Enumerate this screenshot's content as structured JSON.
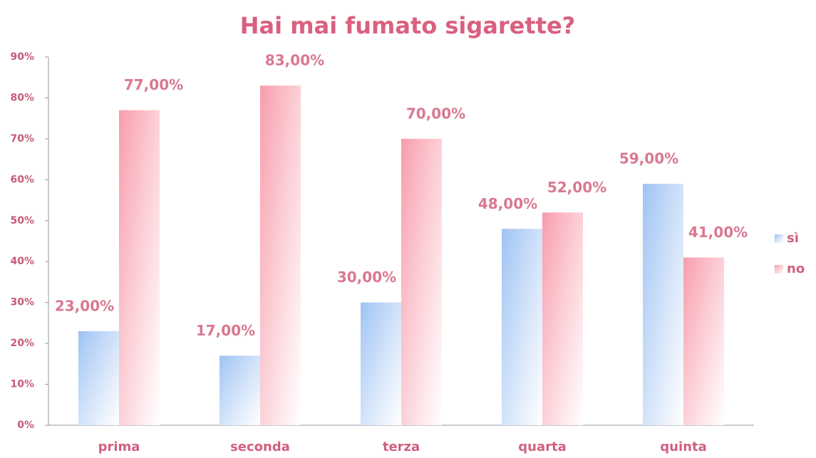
{
  "chart_data": {
    "type": "bar",
    "title": "Hai mai fumato sigarette?",
    "categories": [
      "prima",
      "seconda",
      "terza",
      "quarta",
      "quinta"
    ],
    "series": [
      {
        "name": "sì",
        "color": "#9fc3f3",
        "values": [
          23,
          17,
          30,
          48,
          59
        ],
        "value_labels": [
          "23,00%",
          "17,00%",
          "30,00%",
          "48,00%",
          "59,00%"
        ]
      },
      {
        "name": "no",
        "color": "#f89dac",
        "values": [
          77,
          83,
          70,
          52,
          41
        ],
        "value_labels": [
          "77,00%",
          "83,00%",
          "70,00%",
          "52,00%",
          "41,00%"
        ]
      }
    ],
    "ylim": [
      0,
      90
    ],
    "yticks": [
      {
        "value": 0,
        "label": "0%"
      },
      {
        "value": 10,
        "label": "10%"
      },
      {
        "value": 20,
        "label": "20%"
      },
      {
        "value": 30,
        "label": "30%"
      },
      {
        "value": 40,
        "label": "40%"
      },
      {
        "value": 50,
        "label": "50%"
      },
      {
        "value": 60,
        "label": "60%"
      },
      {
        "value": 70,
        "label": "70%"
      },
      {
        "value": 80,
        "label": "80%"
      },
      {
        "value": 90,
        "label": "90%"
      }
    ],
    "legend": "right",
    "grid": false
  }
}
